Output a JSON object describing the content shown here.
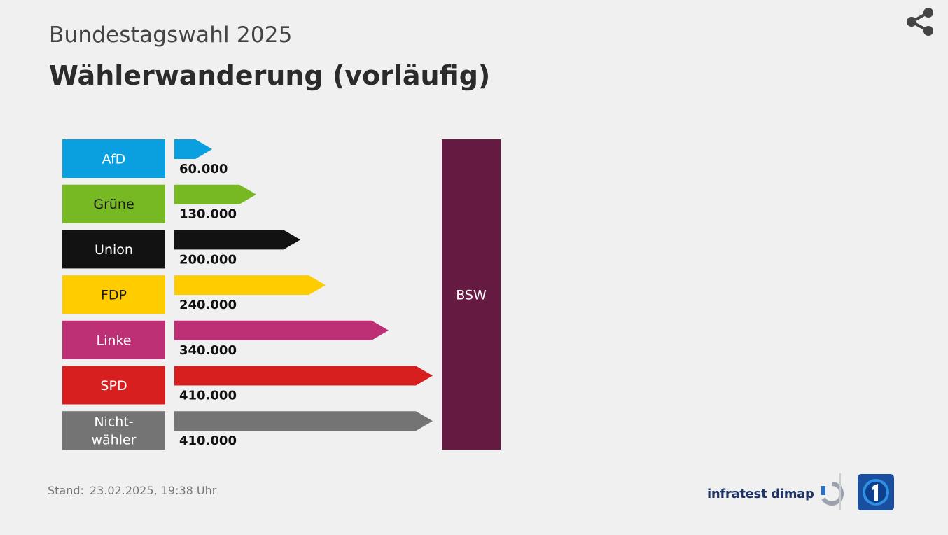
{
  "header": {
    "subtitle": "Bundestagswahl 2025",
    "title": "Wählerwanderung (vorläufig)"
  },
  "toolbar": {
    "share_icon": "share-icon"
  },
  "chart_data": {
    "type": "bar",
    "orientation": "horizontal",
    "categories": [
      "AfD",
      "Grüne",
      "Union",
      "FDP",
      "Linke",
      "SPD",
      "Nicht-\nwähler"
    ],
    "values": [
      60000,
      130000,
      200000,
      240000,
      340000,
      410000,
      410000
    ],
    "value_labels": [
      "60.000",
      "130.000",
      "200.000",
      "240.000",
      "340.000",
      "410.000",
      "410.000"
    ],
    "colors": [
      "#0a9fdf",
      "#76b922",
      "#121212",
      "#ffcc00",
      "#be3075",
      "#d71f1f",
      "#747474"
    ],
    "label_text_colors": [
      "#ffffff",
      "#1a1a1a",
      "#ffffff",
      "#1a1a1a",
      "#ffffff",
      "#ffffff",
      "#ffffff"
    ],
    "target": {
      "label": "BSW",
      "color": "#651a42"
    }
  },
  "footer": {
    "stand_label": "Stand:",
    "stand_value": "23.02.2025, 19:38 Uhr",
    "source": "infratest dimap",
    "source_icon": "infratest-logo-icon",
    "broadcaster_icon": "ard-tagesschau-logo-icon"
  }
}
